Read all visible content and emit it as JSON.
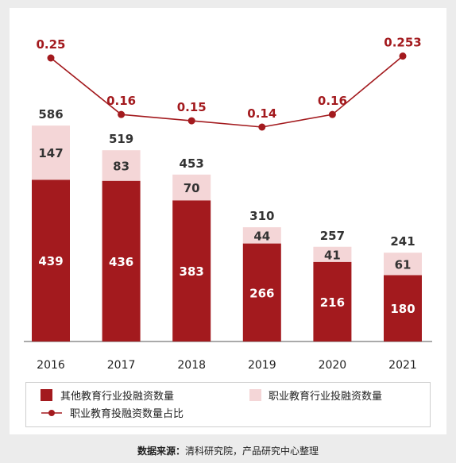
{
  "chart_data": {
    "type": "bar",
    "categories": [
      "2016",
      "2017",
      "2018",
      "2019",
      "2020",
      "2021"
    ],
    "series": [
      {
        "name": "其他教育行业投融资数量",
        "kind": "stacked-bar",
        "color": "#a31a1e",
        "values": [
          439,
          436,
          383,
          266,
          216,
          180
        ]
      },
      {
        "name": "职业教育行业投融资数量",
        "kind": "stacked-bar",
        "color": "#f4d6d7",
        "values": [
          147,
          83,
          70,
          44,
          41,
          61
        ]
      },
      {
        "name": "职业教育投融资数量占比",
        "kind": "line",
        "color": "#a31a1e",
        "values": [
          0.25,
          0.16,
          0.15,
          0.14,
          0.16,
          0.253
        ]
      }
    ],
    "totals": [
      586,
      519,
      453,
      310,
      257,
      241
    ],
    "line_labels": [
      "0.25",
      "0.16",
      "0.15",
      "0.14",
      "0.16",
      "0.253"
    ],
    "ylim": [
      0,
      600
    ],
    "line_ylim": [
      0.1,
      0.3
    ],
    "grid": false,
    "legend_position": "bottom"
  },
  "source": {
    "label": "数据来源：",
    "text": "清科研究院，产品研究中心整理"
  }
}
